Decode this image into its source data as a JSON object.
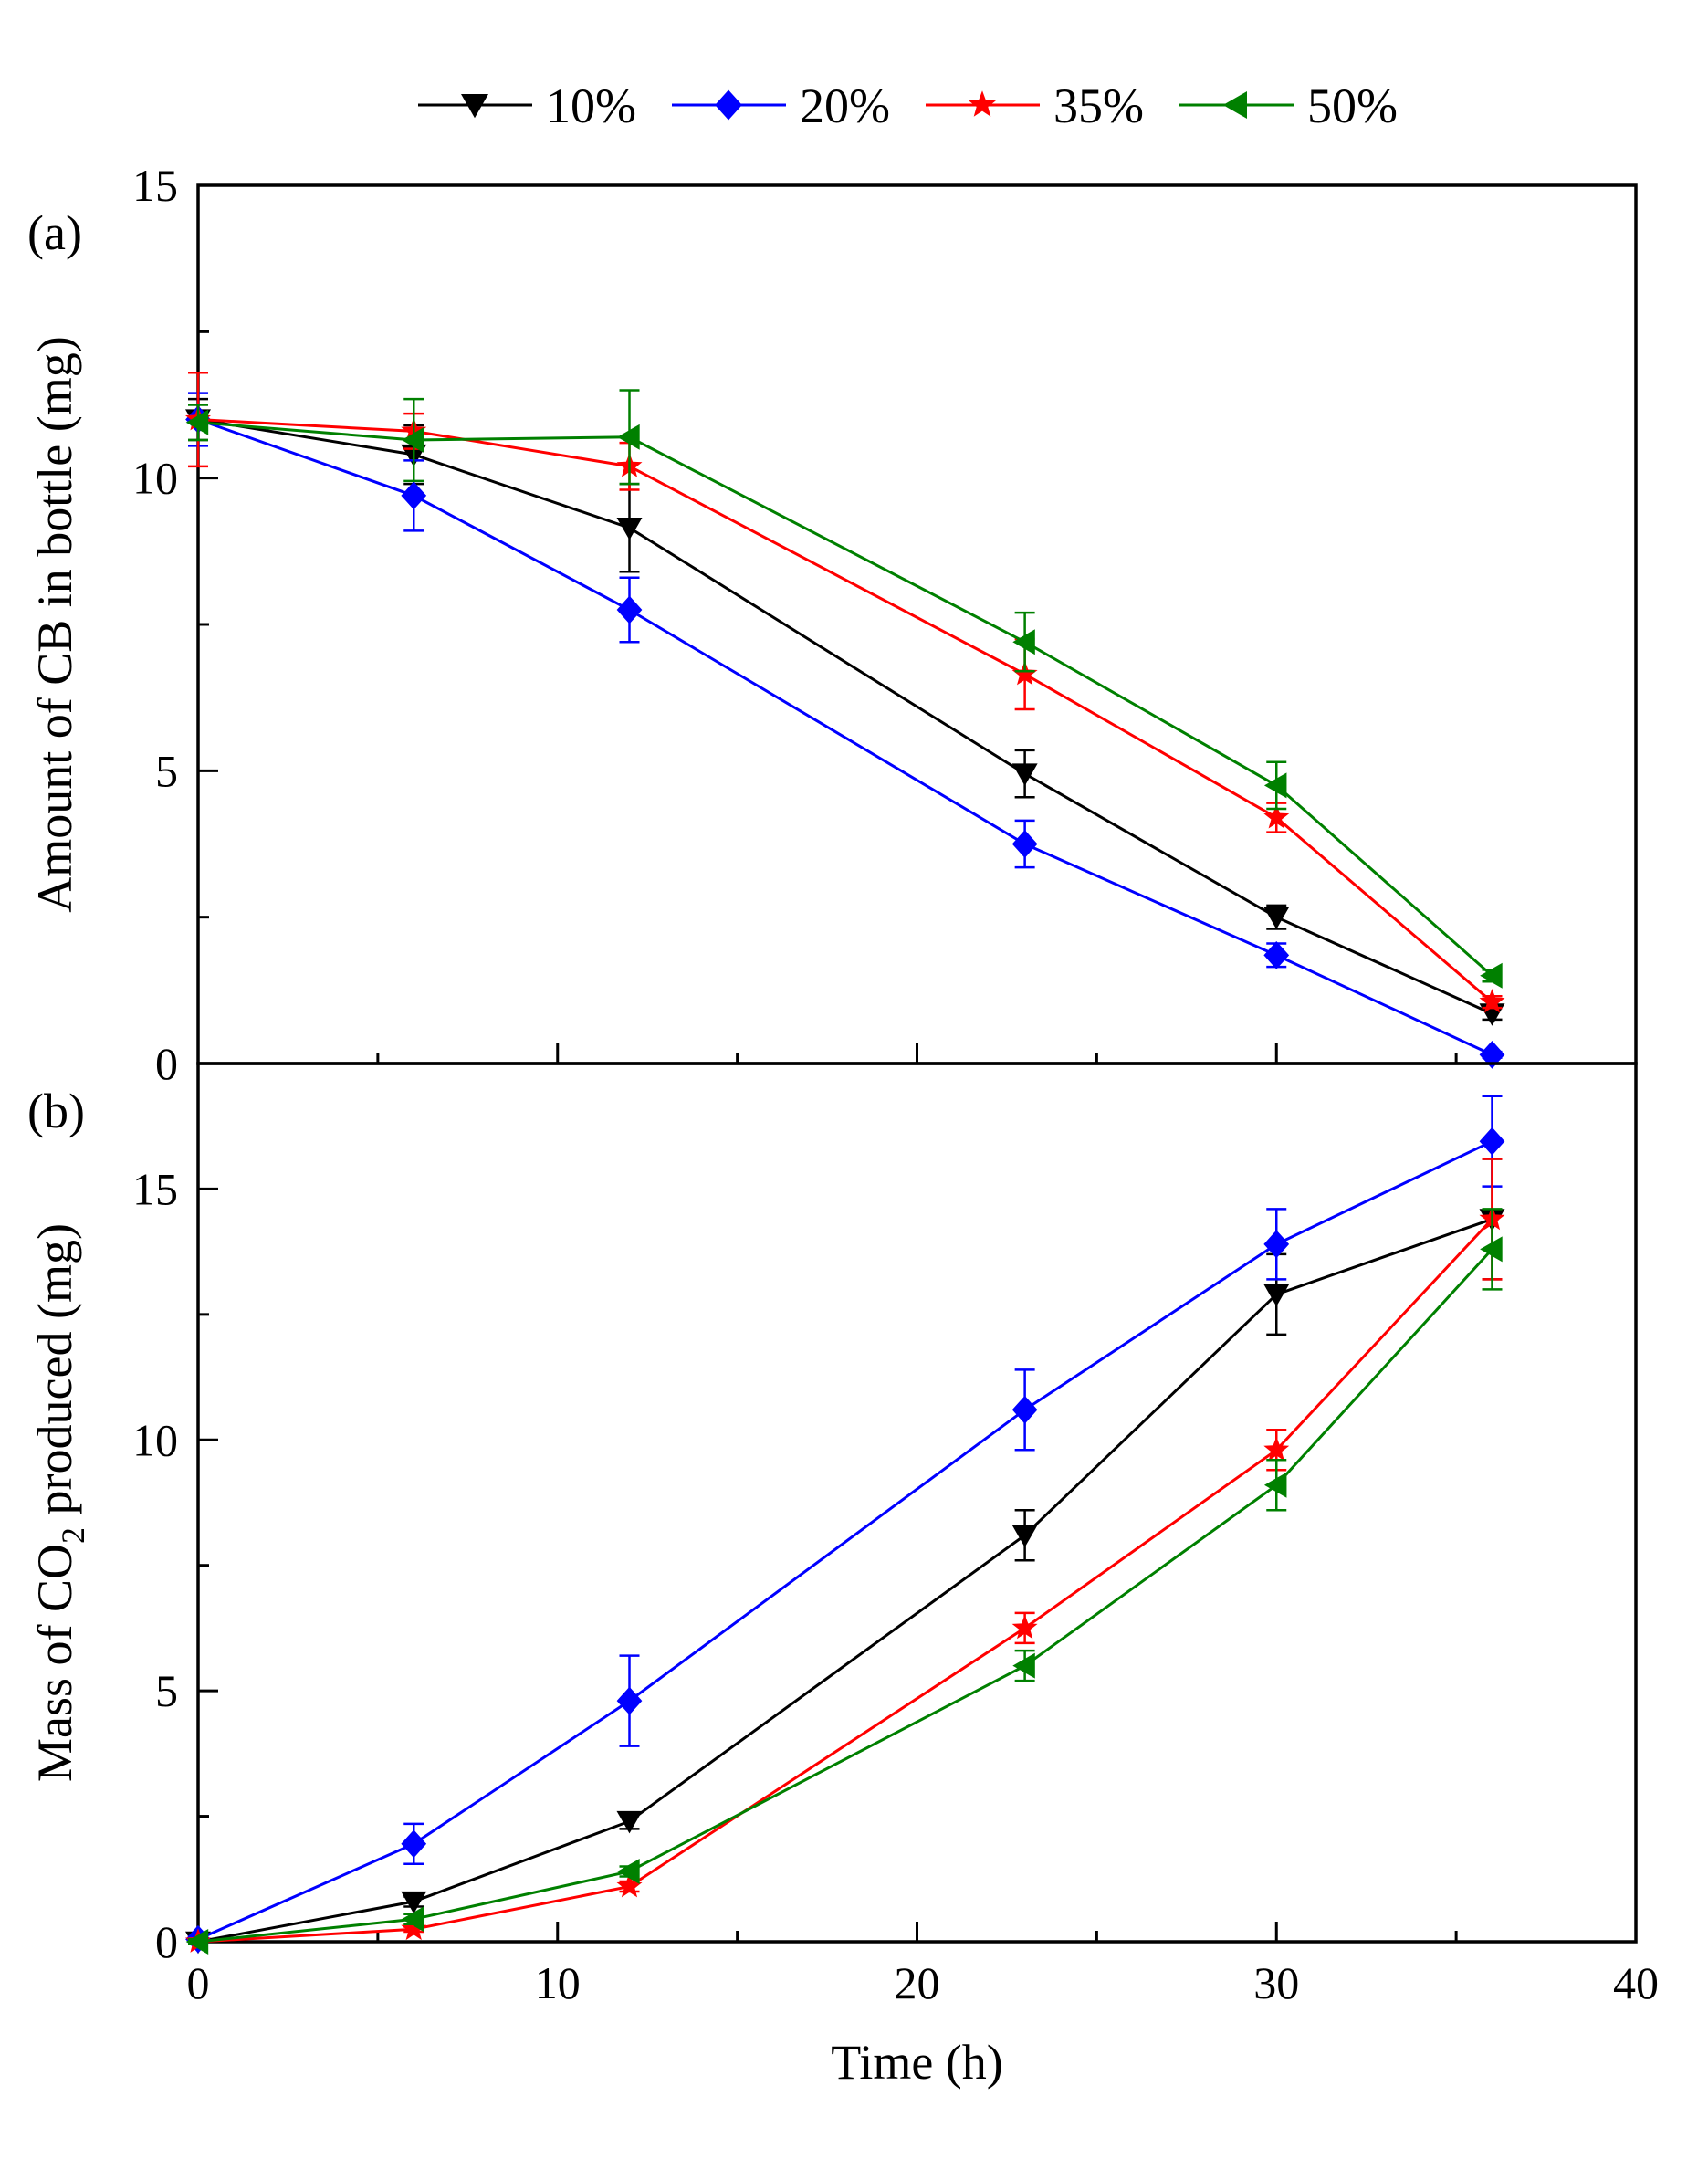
{
  "chart_data": [
    {
      "type": "line",
      "panel_label": "(a)",
      "ylabel": "Amount of CB in bottle (mg)",
      "xlabel": "",
      "xlim": [
        0,
        40
      ],
      "ylim": [
        0,
        15
      ],
      "x_ticks": [
        0,
        10,
        20,
        30,
        40
      ],
      "y_ticks": [
        0,
        5,
        10,
        15
      ],
      "x_tick_labels_shown": false,
      "grid": false,
      "series": [
        {
          "name": "10%",
          "color": "#000000",
          "marker": "triangle-down",
          "x": [
            0,
            6,
            12,
            23,
            30,
            36
          ],
          "y": [
            11.0,
            10.4,
            9.15,
            4.95,
            2.5,
            0.85
          ],
          "err": [
            0.35,
            0.5,
            0.75,
            0.4,
            0.2,
            0.1
          ]
        },
        {
          "name": "20%",
          "color": "#0000ff",
          "marker": "diamond",
          "x": [
            0,
            6,
            12,
            23,
            30,
            36
          ],
          "y": [
            11.0,
            9.7,
            7.75,
            3.75,
            1.85,
            0.15
          ],
          "err": [
            0.45,
            0.6,
            0.55,
            0.4,
            0.2,
            0.05
          ]
        },
        {
          "name": "35%",
          "color": "#ff0000",
          "marker": "star",
          "x": [
            0,
            6,
            12,
            23,
            30,
            36
          ],
          "y": [
            11.0,
            10.8,
            10.2,
            6.65,
            4.2,
            1.05
          ],
          "err": [
            0.8,
            0.3,
            0.4,
            0.6,
            0.25,
            0.1
          ]
        },
        {
          "name": "50%",
          "color": "#008000",
          "marker": "triangle-left",
          "x": [
            0,
            6,
            12,
            23,
            30,
            36
          ],
          "y": [
            10.95,
            10.65,
            10.7,
            7.2,
            4.75,
            1.5
          ],
          "err": [
            0.3,
            0.7,
            0.8,
            0.5,
            0.4,
            0.1
          ]
        }
      ]
    },
    {
      "type": "line",
      "panel_label": "(b)",
      "ylabel_main": "Mass of CO",
      "ylabel_sub": "2",
      "ylabel_tail": " produced (mg)",
      "xlabel": "Time (h)",
      "xlim": [
        0,
        40
      ],
      "ylim": [
        0,
        17.5
      ],
      "x_ticks": [
        0,
        10,
        20,
        30,
        40
      ],
      "y_ticks": [
        0,
        5,
        10,
        15
      ],
      "grid": false,
      "series": [
        {
          "name": "10%",
          "color": "#000000",
          "marker": "triangle-down",
          "x": [
            0,
            6,
            12,
            23,
            30,
            36
          ],
          "y": [
            0.0,
            0.8,
            2.4,
            8.1,
            12.9,
            14.4
          ],
          "err": [
            0.05,
            0.1,
            0.15,
            0.5,
            0.8,
            1.2
          ]
        },
        {
          "name": "20%",
          "color": "#0000ff",
          "marker": "diamond",
          "x": [
            0,
            6,
            12,
            23,
            30,
            36
          ],
          "y": [
            0.05,
            1.95,
            4.8,
            10.6,
            13.9,
            15.95
          ],
          "err": [
            0.05,
            0.4,
            0.9,
            0.8,
            0.7,
            0.9
          ]
        },
        {
          "name": "35%",
          "color": "#ff0000",
          "marker": "star",
          "x": [
            0,
            6,
            12,
            23,
            30,
            36
          ],
          "y": [
            0.0,
            0.25,
            1.1,
            6.25,
            9.8,
            14.4
          ],
          "err": [
            0.05,
            0.05,
            0.1,
            0.3,
            0.4,
            1.2
          ]
        },
        {
          "name": "50%",
          "color": "#008000",
          "marker": "triangle-left",
          "x": [
            0,
            6,
            12,
            23,
            30,
            36
          ],
          "y": [
            0.0,
            0.45,
            1.4,
            5.5,
            9.1,
            13.8
          ],
          "err": [
            0.05,
            0.1,
            0.1,
            0.3,
            0.5,
            0.8
          ]
        }
      ]
    }
  ],
  "legend": {
    "placement": "top-center",
    "items": [
      {
        "label": "10%",
        "color": "#000000",
        "marker": "triangle-down"
      },
      {
        "label": "20%",
        "color": "#0000ff",
        "marker": "diamond"
      },
      {
        "label": "35%",
        "color": "#ff0000",
        "marker": "star"
      },
      {
        "label": "50%",
        "color": "#008000",
        "marker": "triangle-left"
      }
    ]
  }
}
